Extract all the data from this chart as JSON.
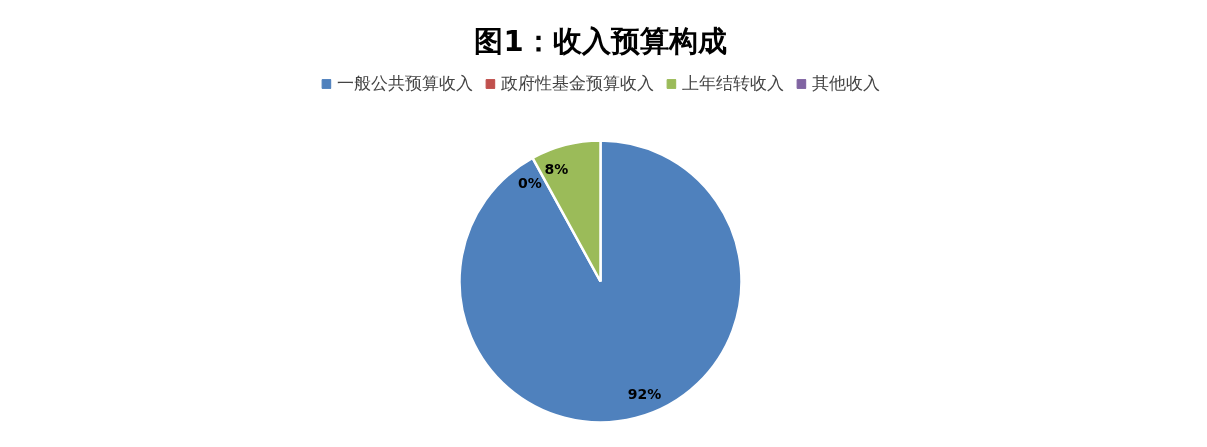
{
  "chart_data": {
    "type": "pie",
    "title": "图1：收入预算构成",
    "categories": [
      "一般公共预算收入",
      "政府性基金预算收入",
      "上年结转收入",
      "其他收入"
    ],
    "values": [
      92,
      0,
      8,
      0
    ],
    "colors": [
      "#4f81bd",
      "#c0504d",
      "#9bbb59",
      "#8064a2"
    ],
    "value_labels": [
      "92%",
      "0%",
      "8%",
      null
    ],
    "legend": "top"
  }
}
